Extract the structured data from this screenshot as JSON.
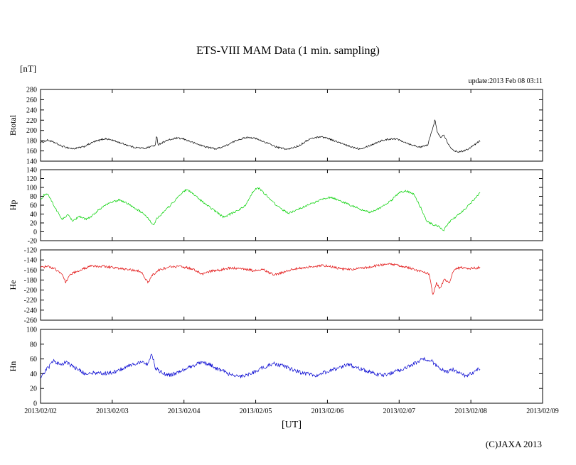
{
  "page": {
    "title": "ETS-VIII MAM Data (1 min. sampling)",
    "y_unit_label": "[nT]",
    "x_axis_label": "[UT]",
    "update_text": "update:2013 Feb 08 03:11",
    "copyright": "(C)JAXA 2013",
    "background": "#ffffff"
  },
  "chart_data": {
    "type": "line",
    "title": "ETS-VIII MAM Data (1 min. sampling)",
    "xlabel": "[UT]",
    "ylabel_unit": "[nT]",
    "grid": false,
    "legend": "none",
    "x_ticks": [
      "2013/02/02",
      "2013/02/03",
      "2013/02/04",
      "2013/02/05",
      "2013/02/06",
      "2013/02/07",
      "2013/02/08",
      "2013/02/09"
    ],
    "x_range_days": [
      0,
      7
    ],
    "data_end_day": 6.13,
    "panels": [
      {
        "name": "Btotal",
        "color": "#000000",
        "ylim": [
          140,
          280
        ],
        "ytick_step": 20,
        "noise_amplitude": 1.6,
        "keypoints": [
          [
            0,
            176
          ],
          [
            0.1,
            181
          ],
          [
            0.2,
            176
          ],
          [
            0.3,
            169
          ],
          [
            0.45,
            164
          ],
          [
            0.6,
            168
          ],
          [
            0.75,
            178
          ],
          [
            0.9,
            184
          ],
          [
            1.0,
            181
          ],
          [
            1.15,
            174
          ],
          [
            1.3,
            167
          ],
          [
            1.45,
            165
          ],
          [
            1.6,
            171
          ],
          [
            1.62,
            190
          ],
          [
            1.64,
            172
          ],
          [
            1.75,
            180
          ],
          [
            1.9,
            185
          ],
          [
            2.0,
            183
          ],
          [
            2.15,
            175
          ],
          [
            2.3,
            168
          ],
          [
            2.45,
            164
          ],
          [
            2.6,
            171
          ],
          [
            2.75,
            182
          ],
          [
            2.9,
            187
          ],
          [
            3.0,
            184
          ],
          [
            3.15,
            176
          ],
          [
            3.3,
            167
          ],
          [
            3.45,
            163
          ],
          [
            3.6,
            170
          ],
          [
            3.75,
            183
          ],
          [
            3.9,
            188
          ],
          [
            4.0,
            185
          ],
          [
            4.15,
            177
          ],
          [
            4.3,
            169
          ],
          [
            4.45,
            164
          ],
          [
            4.6,
            171
          ],
          [
            4.75,
            180
          ],
          [
            4.9,
            184
          ],
          [
            5.0,
            182
          ],
          [
            5.15,
            173
          ],
          [
            5.3,
            167
          ],
          [
            5.4,
            172
          ],
          [
            5.45,
            196
          ],
          [
            5.5,
            221
          ],
          [
            5.53,
            197
          ],
          [
            5.58,
            186
          ],
          [
            5.62,
            193
          ],
          [
            5.68,
            175
          ],
          [
            5.75,
            161
          ],
          [
            5.85,
            158
          ],
          [
            5.95,
            163
          ],
          [
            6.05,
            172
          ],
          [
            6.13,
            180
          ]
        ]
      },
      {
        "name": "Hp",
        "color": "#00d000",
        "ylim": [
          -20,
          140
        ],
        "ytick_step": 20,
        "noise_amplitude": 2.2,
        "keypoints": [
          [
            0,
            70
          ],
          [
            0.05,
            83
          ],
          [
            0.1,
            86
          ],
          [
            0.2,
            55
          ],
          [
            0.3,
            28
          ],
          [
            0.38,
            38
          ],
          [
            0.45,
            25
          ],
          [
            0.55,
            35
          ],
          [
            0.62,
            28
          ],
          [
            0.7,
            33
          ],
          [
            0.8,
            48
          ],
          [
            0.9,
            60
          ],
          [
            1.0,
            67
          ],
          [
            1.1,
            72
          ],
          [
            1.2,
            65
          ],
          [
            1.3,
            55
          ],
          [
            1.4,
            45
          ],
          [
            1.5,
            30
          ],
          [
            1.58,
            15
          ],
          [
            1.62,
            30
          ],
          [
            1.7,
            42
          ],
          [
            1.8,
            58
          ],
          [
            1.9,
            75
          ],
          [
            2.0,
            92
          ],
          [
            2.05,
            95
          ],
          [
            2.15,
            82
          ],
          [
            2.3,
            62
          ],
          [
            2.45,
            45
          ],
          [
            2.55,
            33
          ],
          [
            2.65,
            40
          ],
          [
            2.75,
            48
          ],
          [
            2.85,
            58
          ],
          [
            2.95,
            88
          ],
          [
            3.0,
            96
          ],
          [
            3.05,
            98
          ],
          [
            3.15,
            82
          ],
          [
            3.3,
            58
          ],
          [
            3.45,
            42
          ],
          [
            3.55,
            47
          ],
          [
            3.65,
            55
          ],
          [
            3.8,
            65
          ],
          [
            3.95,
            75
          ],
          [
            4.05,
            78
          ],
          [
            4.2,
            68
          ],
          [
            4.35,
            58
          ],
          [
            4.5,
            48
          ],
          [
            4.6,
            44
          ],
          [
            4.75,
            55
          ],
          [
            4.9,
            72
          ],
          [
            5.0,
            88
          ],
          [
            5.1,
            92
          ],
          [
            5.2,
            85
          ],
          [
            5.3,
            55
          ],
          [
            5.38,
            25
          ],
          [
            5.45,
            18
          ],
          [
            5.55,
            12
          ],
          [
            5.62,
            3
          ],
          [
            5.7,
            22
          ],
          [
            5.8,
            35
          ],
          [
            5.9,
            48
          ],
          [
            6.0,
            65
          ],
          [
            6.1,
            83
          ],
          [
            6.13,
            87
          ]
        ]
      },
      {
        "name": "He",
        "color": "#e00000",
        "ylim": [
          -260,
          -120
        ],
        "ytick_step": 20,
        "noise_amplitude": 2.4,
        "keypoints": [
          [
            0,
            -155
          ],
          [
            0.1,
            -153
          ],
          [
            0.2,
            -158
          ],
          [
            0.3,
            -168
          ],
          [
            0.35,
            -184
          ],
          [
            0.42,
            -168
          ],
          [
            0.55,
            -160
          ],
          [
            0.7,
            -153
          ],
          [
            0.85,
            -152
          ],
          [
            1.0,
            -155
          ],
          [
            1.1,
            -157
          ],
          [
            1.25,
            -160
          ],
          [
            1.4,
            -163
          ],
          [
            1.5,
            -186
          ],
          [
            1.55,
            -172
          ],
          [
            1.65,
            -160
          ],
          [
            1.8,
            -154
          ],
          [
            1.95,
            -153
          ],
          [
            2.1,
            -157
          ],
          [
            2.25,
            -168
          ],
          [
            2.35,
            -163
          ],
          [
            2.5,
            -160
          ],
          [
            2.65,
            -156
          ],
          [
            2.8,
            -157
          ],
          [
            2.95,
            -161
          ],
          [
            3.1,
            -159
          ],
          [
            3.25,
            -170
          ],
          [
            3.35,
            -166
          ],
          [
            3.5,
            -159
          ],
          [
            3.65,
            -156
          ],
          [
            3.8,
            -153
          ],
          [
            3.95,
            -151
          ],
          [
            4.1,
            -155
          ],
          [
            4.25,
            -159
          ],
          [
            4.4,
            -158
          ],
          [
            4.55,
            -155
          ],
          [
            4.7,
            -151
          ],
          [
            4.85,
            -148
          ],
          [
            5.0,
            -151
          ],
          [
            5.15,
            -156
          ],
          [
            5.3,
            -163
          ],
          [
            5.42,
            -168
          ],
          [
            5.47,
            -210
          ],
          [
            5.52,
            -186
          ],
          [
            5.57,
            -197
          ],
          [
            5.63,
            -178
          ],
          [
            5.7,
            -186
          ],
          [
            5.76,
            -160
          ],
          [
            5.85,
            -155
          ],
          [
            6.0,
            -157
          ],
          [
            6.13,
            -155
          ]
        ]
      },
      {
        "name": "Hn",
        "color": "#0000d0",
        "ylim": [
          0,
          100
        ],
        "ytick_step": 20,
        "noise_amplitude": 2.6,
        "keypoints": [
          [
            0,
            36
          ],
          [
            0.08,
            45
          ],
          [
            0.18,
            57
          ],
          [
            0.28,
            52
          ],
          [
            0.35,
            56
          ],
          [
            0.45,
            50
          ],
          [
            0.55,
            44
          ],
          [
            0.65,
            39
          ],
          [
            0.75,
            42
          ],
          [
            0.85,
            40
          ],
          [
            1.0,
            41
          ],
          [
            1.1,
            45
          ],
          [
            1.25,
            52
          ],
          [
            1.4,
            55
          ],
          [
            1.5,
            53
          ],
          [
            1.55,
            67
          ],
          [
            1.6,
            48
          ],
          [
            1.7,
            41
          ],
          [
            1.8,
            38
          ],
          [
            1.95,
            43
          ],
          [
            2.1,
            50
          ],
          [
            2.25,
            56
          ],
          [
            2.35,
            53
          ],
          [
            2.5,
            45
          ],
          [
            2.65,
            39
          ],
          [
            2.8,
            36
          ],
          [
            2.95,
            41
          ],
          [
            3.1,
            48
          ],
          [
            3.25,
            54
          ],
          [
            3.4,
            50
          ],
          [
            3.55,
            44
          ],
          [
            3.7,
            40
          ],
          [
            3.85,
            38
          ],
          [
            4.0,
            43
          ],
          [
            4.15,
            48
          ],
          [
            4.3,
            52
          ],
          [
            4.45,
            47
          ],
          [
            4.6,
            42
          ],
          [
            4.75,
            38
          ],
          [
            4.9,
            41
          ],
          [
            5.05,
            46
          ],
          [
            5.2,
            53
          ],
          [
            5.35,
            61
          ],
          [
            5.45,
            57
          ],
          [
            5.55,
            49
          ],
          [
            5.65,
            42
          ],
          [
            5.75,
            46
          ],
          [
            5.85,
            40
          ],
          [
            5.95,
            37
          ],
          [
            6.05,
            42
          ],
          [
            6.13,
            48
          ]
        ]
      }
    ]
  }
}
